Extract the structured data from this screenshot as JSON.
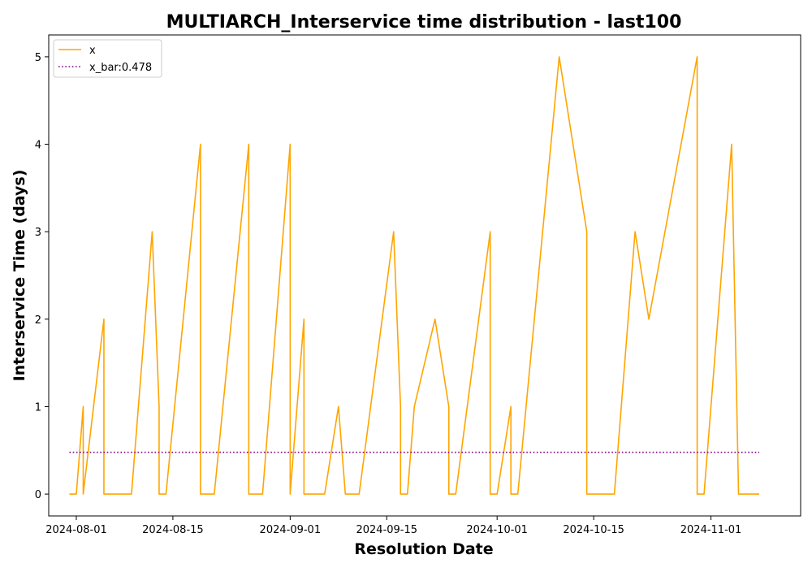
{
  "chart_data": {
    "type": "line",
    "title": "MULTIARCH_Interservice time distribution - last100",
    "xlabel": "Resolution Date",
    "ylabel": "Interservice Time (days)",
    "x_ticks": [
      "2024-08-01",
      "2024-08-15",
      "2024-09-01",
      "2024-09-15",
      "2024-10-01",
      "2024-10-15",
      "2024-11-01"
    ],
    "y_ticks": [
      "0",
      "1",
      "2",
      "3",
      "4",
      "5"
    ],
    "xlim": [
      "2024-07-28",
      "2024-11-14"
    ],
    "ylim": [
      -0.25,
      5.25
    ],
    "legend_position": "top-left",
    "series": [
      {
        "name": "x",
        "color": "#ffa500",
        "style": "solid",
        "points": [
          [
            "2024-07-31",
            0
          ],
          [
            "2024-08-01",
            0
          ],
          [
            "2024-08-02",
            1
          ],
          [
            "2024-08-02",
            0
          ],
          [
            "2024-08-05",
            2
          ],
          [
            "2024-08-05",
            0
          ],
          [
            "2024-08-09",
            0
          ],
          [
            "2024-08-12",
            3
          ],
          [
            "2024-08-13",
            1
          ],
          [
            "2024-08-13",
            0
          ],
          [
            "2024-08-14",
            0
          ],
          [
            "2024-08-19",
            4
          ],
          [
            "2024-08-19",
            0
          ],
          [
            "2024-08-21",
            0
          ],
          [
            "2024-08-26",
            4
          ],
          [
            "2024-08-26",
            0
          ],
          [
            "2024-08-28",
            0
          ],
          [
            "2024-09-01",
            4
          ],
          [
            "2024-09-01",
            0
          ],
          [
            "2024-09-02",
            1
          ],
          [
            "2024-09-03",
            2
          ],
          [
            "2024-09-03",
            0
          ],
          [
            "2024-09-06",
            0
          ],
          [
            "2024-09-08",
            1
          ],
          [
            "2024-09-09",
            0
          ],
          [
            "2024-09-11",
            0
          ],
          [
            "2024-09-16",
            3
          ],
          [
            "2024-09-17",
            1
          ],
          [
            "2024-09-17",
            0
          ],
          [
            "2024-09-18",
            0
          ],
          [
            "2024-09-19",
            1
          ],
          [
            "2024-09-22",
            2
          ],
          [
            "2024-09-24",
            1
          ],
          [
            "2024-09-24",
            0
          ],
          [
            "2024-09-25",
            0
          ],
          [
            "2024-09-30",
            3
          ],
          [
            "2024-09-30",
            0
          ],
          [
            "2024-10-01",
            0
          ],
          [
            "2024-10-03",
            1
          ],
          [
            "2024-10-03",
            0
          ],
          [
            "2024-10-04",
            0
          ],
          [
            "2024-10-10",
            5
          ],
          [
            "2024-10-14",
            3
          ],
          [
            "2024-10-14",
            0
          ],
          [
            "2024-10-18",
            0
          ],
          [
            "2024-10-21",
            3
          ],
          [
            "2024-10-23",
            2
          ],
          [
            "2024-10-30",
            5
          ],
          [
            "2024-10-30",
            0
          ],
          [
            "2024-10-31",
            0
          ],
          [
            "2024-11-04",
            4
          ],
          [
            "2024-11-05",
            0
          ],
          [
            "2024-11-08",
            0
          ]
        ]
      },
      {
        "name": "x_bar:0.478",
        "color": "#800080",
        "style": "dotted",
        "points": [
          [
            "2024-07-31",
            0.478
          ],
          [
            "2024-11-08",
            0.478
          ]
        ]
      }
    ]
  }
}
